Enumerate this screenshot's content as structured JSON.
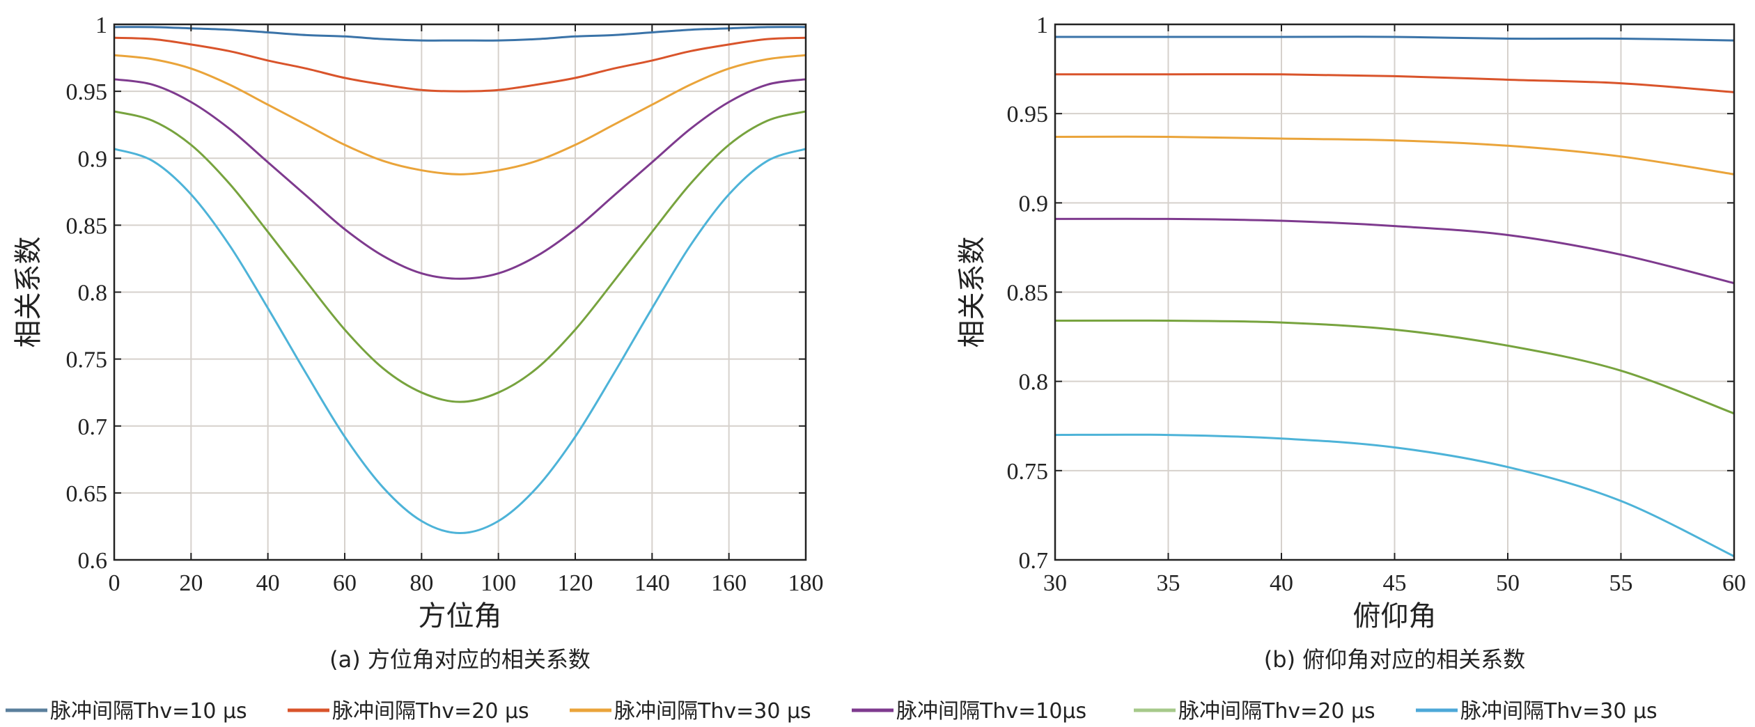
{
  "chart_data": [
    {
      "type": "line",
      "title": "",
      "caption": "(a) 方位角对应的相关系数",
      "xlabel": "方位角",
      "ylabel": "相关系数",
      "xlim": [
        0,
        180
      ],
      "ylim": [
        0.6,
        1
      ],
      "grid": true,
      "xticks": [
        0,
        20,
        40,
        60,
        80,
        100,
        120,
        140,
        160,
        180
      ],
      "xtick_labels": [
        "0",
        "20",
        "40",
        "60",
        "80",
        "100",
        "120",
        "140",
        "160",
        "180"
      ],
      "yticks": [
        0.6,
        0.65,
        0.7,
        0.75,
        0.8,
        0.85,
        0.9,
        0.95,
        1
      ],
      "ytick_labels": [
        "0.6",
        "0.65",
        "0.7",
        "0.75",
        "0.8",
        "0.85",
        "0.9",
        "0.95",
        "1"
      ],
      "x": [
        0,
        10,
        20,
        30,
        40,
        50,
        60,
        70,
        80,
        90,
        100,
        110,
        120,
        130,
        140,
        150,
        160,
        170,
        180
      ],
      "series": [
        {
          "name": "脉冲间隔Thv=10 μs",
          "color": "#3a73a8",
          "values": [
            0.998,
            0.998,
            0.997,
            0.996,
            0.994,
            0.992,
            0.991,
            0.989,
            0.988,
            0.988,
            0.988,
            0.989,
            0.991,
            0.992,
            0.994,
            0.996,
            0.997,
            0.998,
            0.998
          ]
        },
        {
          "name": "脉冲间隔Thv=20 μs",
          "color": "#d9542b",
          "values": [
            0.99,
            0.989,
            0.985,
            0.98,
            0.973,
            0.967,
            0.96,
            0.955,
            0.951,
            0.95,
            0.951,
            0.955,
            0.96,
            0.967,
            0.973,
            0.98,
            0.985,
            0.989,
            0.99
          ]
        },
        {
          "name": "脉冲间隔Thv=30 μs",
          "color": "#eaa43a",
          "values": [
            0.977,
            0.974,
            0.967,
            0.955,
            0.94,
            0.925,
            0.91,
            0.898,
            0.891,
            0.888,
            0.891,
            0.898,
            0.91,
            0.925,
            0.94,
            0.955,
            0.967,
            0.974,
            0.977
          ]
        },
        {
          "name": "脉冲间隔Thv=10μs",
          "color": "#7e3a8e",
          "values": [
            0.959,
            0.955,
            0.942,
            0.922,
            0.897,
            0.872,
            0.847,
            0.827,
            0.814,
            0.81,
            0.814,
            0.827,
            0.847,
            0.872,
            0.897,
            0.922,
            0.942,
            0.955,
            0.959
          ]
        },
        {
          "name": "脉冲间隔Thv=20 μs",
          "color": "#77a33e",
          "values": [
            0.935,
            0.928,
            0.91,
            0.881,
            0.845,
            0.808,
            0.772,
            0.743,
            0.725,
            0.718,
            0.725,
            0.743,
            0.772,
            0.808,
            0.845,
            0.881,
            0.91,
            0.928,
            0.935
          ]
        },
        {
          "name": "脉冲间隔Thv=30 μs",
          "color": "#4db3d8",
          "values": [
            0.907,
            0.898,
            0.873,
            0.835,
            0.788,
            0.739,
            0.692,
            0.654,
            0.629,
            0.62,
            0.629,
            0.654,
            0.692,
            0.739,
            0.788,
            0.835,
            0.873,
            0.898,
            0.907
          ]
        }
      ]
    },
    {
      "type": "line",
      "title": "",
      "caption": "(b) 俯仰角对应的相关系数",
      "xlabel": "俯仰角",
      "ylabel": "相关系数",
      "xlim": [
        30,
        60
      ],
      "ylim": [
        0.7,
        1
      ],
      "grid": true,
      "xticks": [
        30,
        35,
        40,
        45,
        50,
        55,
        60
      ],
      "xtick_labels": [
        "30",
        "35",
        "40",
        "45",
        "50",
        "55",
        "60"
      ],
      "yticks": [
        0.7,
        0.75,
        0.8,
        0.85,
        0.9,
        0.95,
        1
      ],
      "ytick_labels": [
        "0.7",
        "0.75",
        "0.8",
        "0.85",
        "0.9",
        "0.95",
        "1"
      ],
      "x": [
        30,
        35,
        40,
        45,
        50,
        55,
        60
      ],
      "series": [
        {
          "name": "脉冲间隔Thv=10 μs",
          "color": "#3a73a8",
          "values": [
            0.993,
            0.993,
            0.993,
            0.993,
            0.992,
            0.992,
            0.991
          ]
        },
        {
          "name": "脉冲间隔Thv=20 μs",
          "color": "#d9542b",
          "values": [
            0.972,
            0.972,
            0.972,
            0.971,
            0.969,
            0.967,
            0.962
          ]
        },
        {
          "name": "脉冲间隔Thv=30 μs",
          "color": "#eaa43a",
          "values": [
            0.937,
            0.937,
            0.936,
            0.935,
            0.932,
            0.926,
            0.916
          ]
        },
        {
          "name": "脉冲间隔Thv=10μs",
          "color": "#7e3a8e",
          "values": [
            0.891,
            0.891,
            0.89,
            0.887,
            0.882,
            0.871,
            0.855
          ]
        },
        {
          "name": "脉冲间隔Thv=20 μs",
          "color": "#77a33e",
          "values": [
            0.834,
            0.834,
            0.833,
            0.829,
            0.82,
            0.806,
            0.782
          ]
        },
        {
          "name": "脉冲间隔Thv=30 μs",
          "color": "#4db3d8",
          "values": [
            0.77,
            0.77,
            0.768,
            0.763,
            0.752,
            0.733,
            0.702
          ]
        }
      ]
    }
  ],
  "legend": {
    "placement": "bottom",
    "items": [
      {
        "label": "脉冲间隔Thv=10 μs",
        "color": "#5a7f9c"
      },
      {
        "label": "脉冲间隔Thv=20 μs",
        "color": "#d9542b"
      },
      {
        "label": "脉冲间隔Thv=30 μs",
        "color": "#eaa43a"
      },
      {
        "label": "脉冲间隔Thv=10μs",
        "color": "#7e3a8e"
      },
      {
        "label": "脉冲间隔Thv=20 μs",
        "color": "#a6c98a"
      },
      {
        "label": "脉冲间隔Thv=30 μs",
        "color": "#4da8d8"
      }
    ]
  }
}
